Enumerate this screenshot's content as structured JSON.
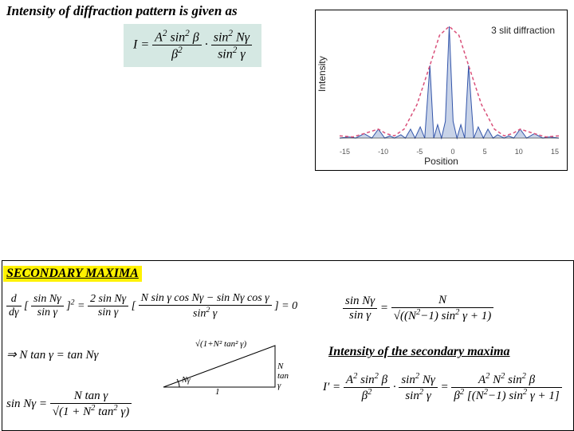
{
  "title": "Intensity of diffraction pattern is given as",
  "main_formula_html": "I = <span class='frac'><span class='num'>A<sup>2</sup> sin<sup>2</sup> β</span><span class='den'>β<sup>2</sup></span></span> · <span class='frac'><span class='num'>sin<sup>2</sup> Nγ</span><span class='den'>sin<sup>2</sup> γ</span></span>",
  "chart": {
    "label": "3 slit diffraction",
    "ylabel": "Intensity",
    "xlabel": "Position",
    "xlim": [
      -17,
      17
    ],
    "xticks": [
      "-15",
      "-10",
      "-5",
      "0",
      "5",
      "10",
      "15"
    ],
    "envelope_color": "#d9507a",
    "fill_color": "#c8d3e8",
    "line_color": "#3355aa",
    "envelope": [
      [
        -17,
        0.02
      ],
      [
        -15,
        0.01
      ],
      [
        -13.2,
        0.04
      ],
      [
        -11,
        0.08
      ],
      [
        -9.8,
        0.04
      ],
      [
        -8.5,
        0.02
      ],
      [
        -7,
        0.08
      ],
      [
        -5,
        0.3
      ],
      [
        -3,
        0.65
      ],
      [
        -1.5,
        0.92
      ],
      [
        0,
        1.0
      ],
      [
        1.5,
        0.92
      ],
      [
        3,
        0.65
      ],
      [
        5,
        0.3
      ],
      [
        7,
        0.08
      ],
      [
        8.5,
        0.02
      ],
      [
        9.8,
        0.04
      ],
      [
        11,
        0.08
      ],
      [
        13.2,
        0.04
      ],
      [
        15,
        0.01
      ],
      [
        17,
        0.02
      ]
    ],
    "pattern": [
      [
        -17,
        0
      ],
      [
        -15.5,
        0.01
      ],
      [
        -14.5,
        0
      ],
      [
        -13.2,
        0.04
      ],
      [
        -12,
        0
      ],
      [
        -11,
        0.08
      ],
      [
        -10,
        0
      ],
      [
        -9.2,
        0.02
      ],
      [
        -8.5,
        0
      ],
      [
        -7.5,
        0.03
      ],
      [
        -6.8,
        0
      ],
      [
        -6,
        0.08
      ],
      [
        -5.3,
        0
      ],
      [
        -4.5,
        0.1
      ],
      [
        -3.8,
        0
      ],
      [
        -3,
        0.65
      ],
      [
        -2.4,
        0
      ],
      [
        -1.8,
        0.12
      ],
      [
        -1.2,
        0
      ],
      [
        -0.6,
        0.15
      ],
      [
        0,
        1.0
      ],
      [
        0.6,
        0.15
      ],
      [
        1.2,
        0
      ],
      [
        1.8,
        0.12
      ],
      [
        2.4,
        0
      ],
      [
        3,
        0.65
      ],
      [
        3.8,
        0
      ],
      [
        4.5,
        0.1
      ],
      [
        5.3,
        0
      ],
      [
        6,
        0.08
      ],
      [
        6.8,
        0
      ],
      [
        7.5,
        0.03
      ],
      [
        8.5,
        0
      ],
      [
        9.2,
        0.02
      ],
      [
        10,
        0
      ],
      [
        11,
        0.08
      ],
      [
        12,
        0
      ],
      [
        13.2,
        0.04
      ],
      [
        14.5,
        0
      ],
      [
        15.5,
        0.01
      ],
      [
        17,
        0
      ]
    ]
  },
  "secondary_title": "SECONDARY  MAXIMA",
  "eq1_html": "<span class='frac'><span class='num'>d</span><span class='den'>dγ</span></span> [ <span class='frac'><span class='num'>sin Nγ</span><span class='den'>sin γ</span></span> ]<sup>2</sup> = <span class='frac'><span class='num'>2 sin Nγ</span><span class='den'>sin γ</span></span> [ <span class='frac'><span class='num'>N sin γ cos Nγ − sin Nγ cos γ</span><span class='den'>sin<sup>2</sup> γ</span></span> ] = 0",
  "eq2_html": "⇒ N tan γ = tan Nγ",
  "triangle": {
    "adj_label": "1",
    "opp_label": "N tan γ",
    "hyp_label": "√(1+N² tan² γ)",
    "angle_label": "Nγ"
  },
  "eq4_html": "sin Nγ = <span class='frac'><span class='num'>N tan γ</span><span class='den'>√(1 + N<sup>2</sup> tan<sup>2</sup> γ)</span></span>",
  "eq5_html": "<span class='frac'><span class='num'>sin Nγ</span><span class='den'>sin γ</span></span> = <span class='frac'><span class='num'>N</span><span class='den'>√((N<sup>2</sup>−1) sin<sup>2</sup> γ + 1)</span></span>",
  "sec_intensity_title": "Intensity of the secondary maxima",
  "eq6_html": "I′ = <span class='frac'><span class='num'>A<sup>2</sup> sin<sup>2</sup> β</span><span class='den'>β<sup>2</sup></span></span> · <span class='frac'><span class='num'>sin<sup>2</sup> Nγ</span><span class='den'>sin<sup>2</sup> γ</span></span> = <span class='frac'><span class='num'>A<sup>2</sup> N<sup>2</sup> sin<sup>2</sup> β</span><span class='den'>β<sup>2</sup> [(N<sup>2</sup>−1) sin<sup>2</sup> γ + 1]</span></span>"
}
